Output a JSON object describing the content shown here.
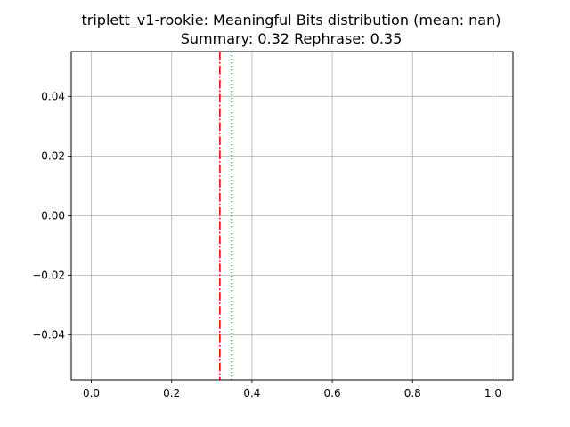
{
  "chart_data": {
    "type": "histogram",
    "title": "triplett_v1-rookie: Meaningful Bits distribution (mean: nan)",
    "subtitle": "Summary: 0.32 Rephrase: 0.35",
    "xlabel": "",
    "ylabel": "",
    "xlim": [
      -0.05,
      1.05
    ],
    "ylim": [
      -0.055,
      0.055
    ],
    "grid": true,
    "x_ticks": [
      0.0,
      0.2,
      0.4,
      0.6,
      0.8,
      1.0
    ],
    "x_tick_labels": [
      "0.0",
      "0.2",
      "0.4",
      "0.6",
      "0.8",
      "1.0"
    ],
    "y_ticks": [
      0.04,
      0.02,
      0.0,
      -0.02,
      -0.04
    ],
    "y_tick_labels": [
      "0.04",
      "0.02",
      "0.00",
      "−0.02",
      "−0.04"
    ],
    "bars": [],
    "reference_lines": [
      {
        "value": 0.32,
        "color": "#ff0000",
        "style": "dashdot"
      },
      {
        "value": 0.35,
        "color": "#008000",
        "style": "dotted"
      }
    ]
  }
}
